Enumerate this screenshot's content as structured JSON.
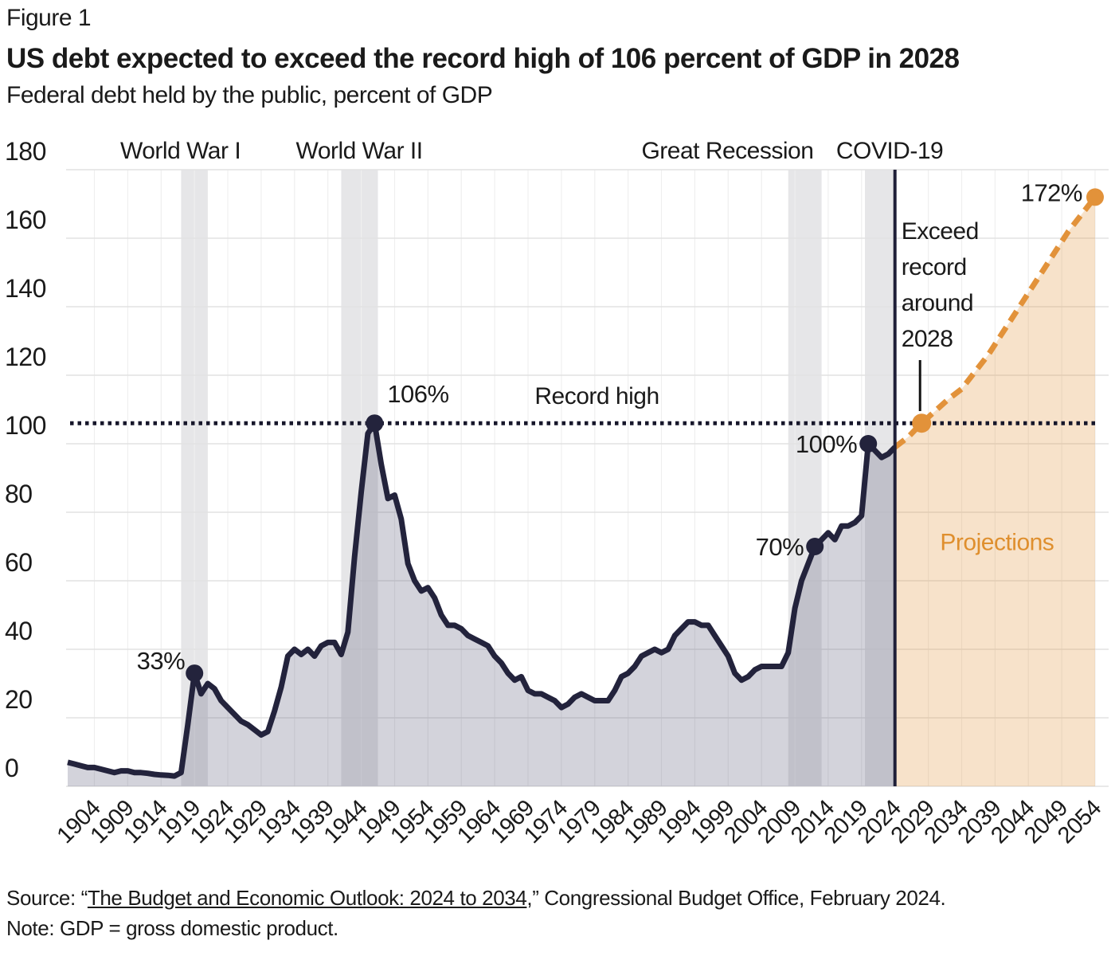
{
  "page": {
    "figure_label": "Figure 1",
    "title": "US debt expected to exceed the record high of 106 percent of GDP in 2028",
    "subtitle": "Federal debt held by the public, percent of GDP",
    "source": {
      "prefix": "Source: “",
      "link_text": "The Budget and Economic Outlook: 2024 to 2034",
      "suffix": ",” Congressional Budget Office, February 2024."
    },
    "note": "Note: GDP = gross domestic product."
  },
  "colors": {
    "line_historical": "#23233c",
    "line_projection": "#e2923a",
    "projection_text": "#df8f2e",
    "fill_historical": "rgba(93,93,122,0.27)",
    "fill_projection": "rgba(226,146,58,0.27)",
    "event_band": "#e6e6e8",
    "grid_h": "#e2e2e2",
    "grid_v": "#efefef",
    "record_dotted": "#16162a",
    "divider": "#1f1f38",
    "text": "#1a1a1a"
  },
  "chart_data": {
    "type": "area",
    "title": "US debt expected to exceed the record high of 106 percent of GDP in 2028",
    "xlabel": "",
    "ylabel": "Federal debt held by the public, percent of GDP",
    "ylim": [
      0,
      180
    ],
    "y_ticks": [
      0,
      20,
      40,
      60,
      80,
      100,
      120,
      140,
      160,
      180
    ],
    "x_domain": [
      1900,
      2054
    ],
    "x_ticks": [
      1904,
      1909,
      1914,
      1919,
      1924,
      1929,
      1934,
      1939,
      1944,
      1949,
      1954,
      1959,
      1964,
      1969,
      1974,
      1979,
      1984,
      1989,
      1994,
      1999,
      2004,
      2009,
      2014,
      2019,
      2024,
      2029,
      2034,
      2039,
      2044,
      2049,
      2054
    ],
    "grid": "horizontal+vertical",
    "legend_position": "none",
    "projection_divider_year": 2024,
    "record_high": {
      "value": 106,
      "label": "Record high"
    },
    "events": [
      {
        "label": "World War I",
        "start": 1917,
        "end": 1921,
        "label_year": 1916.9
      },
      {
        "label": "World War II",
        "start": 1941,
        "end": 1946.5,
        "label_year": 1943.7
      },
      {
        "label": "Great Recession",
        "start": 2008,
        "end": 2013,
        "label_year": 1998.9
      },
      {
        "label": "COVID-19",
        "start": 2019.5,
        "end": 2024,
        "label_year": 2023.2
      }
    ],
    "series": [
      {
        "name": "historical",
        "x": [
          1900,
          1901,
          1902,
          1903,
          1904,
          1905,
          1906,
          1907,
          1908,
          1909,
          1910,
          1911,
          1912,
          1913,
          1914,
          1915,
          1916,
          1917,
          1918,
          1919,
          1920,
          1921,
          1922,
          1923,
          1924,
          1925,
          1926,
          1927,
          1928,
          1929,
          1930,
          1931,
          1932,
          1933,
          1934,
          1935,
          1936,
          1937,
          1938,
          1939,
          1940,
          1941,
          1942,
          1943,
          1944,
          1945,
          1946,
          1947,
          1948,
          1949,
          1950,
          1951,
          1952,
          1953,
          1954,
          1955,
          1956,
          1957,
          1958,
          1959,
          1960,
          1961,
          1962,
          1963,
          1964,
          1965,
          1966,
          1967,
          1968,
          1969,
          1970,
          1971,
          1972,
          1973,
          1974,
          1975,
          1976,
          1977,
          1978,
          1979,
          1980,
          1981,
          1982,
          1983,
          1984,
          1985,
          1986,
          1987,
          1988,
          1989,
          1990,
          1991,
          1992,
          1993,
          1994,
          1995,
          1996,
          1997,
          1998,
          1999,
          2000,
          2001,
          2002,
          2003,
          2004,
          2005,
          2006,
          2007,
          2008,
          2009,
          2010,
          2011,
          2012,
          2013,
          2014,
          2015,
          2016,
          2017,
          2018,
          2019,
          2020,
          2021,
          2022,
          2023,
          2024
        ],
        "values": [
          7,
          6.5,
          6,
          5.5,
          5.5,
          5,
          4.5,
          4,
          4.5,
          4.5,
          4,
          4,
          3.8,
          3.5,
          3.3,
          3.2,
          3,
          4,
          18,
          33,
          27,
          30,
          28.5,
          25,
          23,
          21,
          19,
          18,
          16.5,
          15,
          16,
          22,
          29,
          38,
          40,
          38.5,
          40,
          38,
          41,
          42,
          42,
          38.5,
          45,
          67,
          86,
          103,
          106,
          94,
          84,
          85,
          78,
          65,
          60,
          57,
          58,
          55,
          50,
          47,
          47,
          46,
          44,
          43,
          42,
          41,
          38,
          36,
          33,
          31,
          32,
          28,
          27,
          27,
          26,
          25,
          23,
          24,
          26,
          27,
          26,
          25,
          25,
          25,
          28,
          32,
          33,
          35,
          38,
          39,
          40,
          39,
          40,
          44,
          46,
          48,
          48,
          47,
          47,
          44,
          41,
          38,
          33,
          31,
          32,
          34,
          35,
          35,
          35,
          35,
          39,
          52,
          60,
          65,
          70,
          72,
          74,
          72,
          76,
          76,
          77,
          79,
          100,
          98,
          96,
          97,
          99
        ]
      },
      {
        "name": "projection",
        "x": [
          2024,
          2026,
          2028,
          2030,
          2032,
          2034,
          2036,
          2038,
          2040,
          2042,
          2044,
          2046,
          2048,
          2050,
          2052,
          2054
        ],
        "values": [
          99,
          102,
          106,
          109.5,
          113,
          116,
          121,
          126,
          132,
          138,
          144,
          150,
          156,
          162,
          167,
          172
        ]
      }
    ],
    "markers": [
      {
        "year": 1919,
        "value": 33,
        "label": "33%",
        "series": "historical",
        "label_side": "left-raised"
      },
      {
        "year": 1946,
        "value": 106,
        "label": "106%",
        "series": "historical",
        "label_side": "above-right"
      },
      {
        "year": 2012,
        "value": 70,
        "label": "70%",
        "series": "historical",
        "label_side": "left"
      },
      {
        "year": 2020,
        "value": 100,
        "label": "100%",
        "series": "historical",
        "label_side": "left"
      },
      {
        "year": 2028,
        "value": 106,
        "label": "",
        "series": "projection",
        "label_side": "none"
      },
      {
        "year": 2054,
        "value": 172,
        "label": "172%",
        "series": "projection",
        "label_side": "left-middle"
      }
    ],
    "annotations": [
      {
        "id": "exceed-record",
        "lines": [
          "Exceed",
          "record",
          "around",
          "2028"
        ],
        "target_year": 2028,
        "target_value": 106
      },
      {
        "id": "projections-label",
        "text": "Projections",
        "x_year": 2039.3,
        "y_value": 69
      }
    ]
  }
}
